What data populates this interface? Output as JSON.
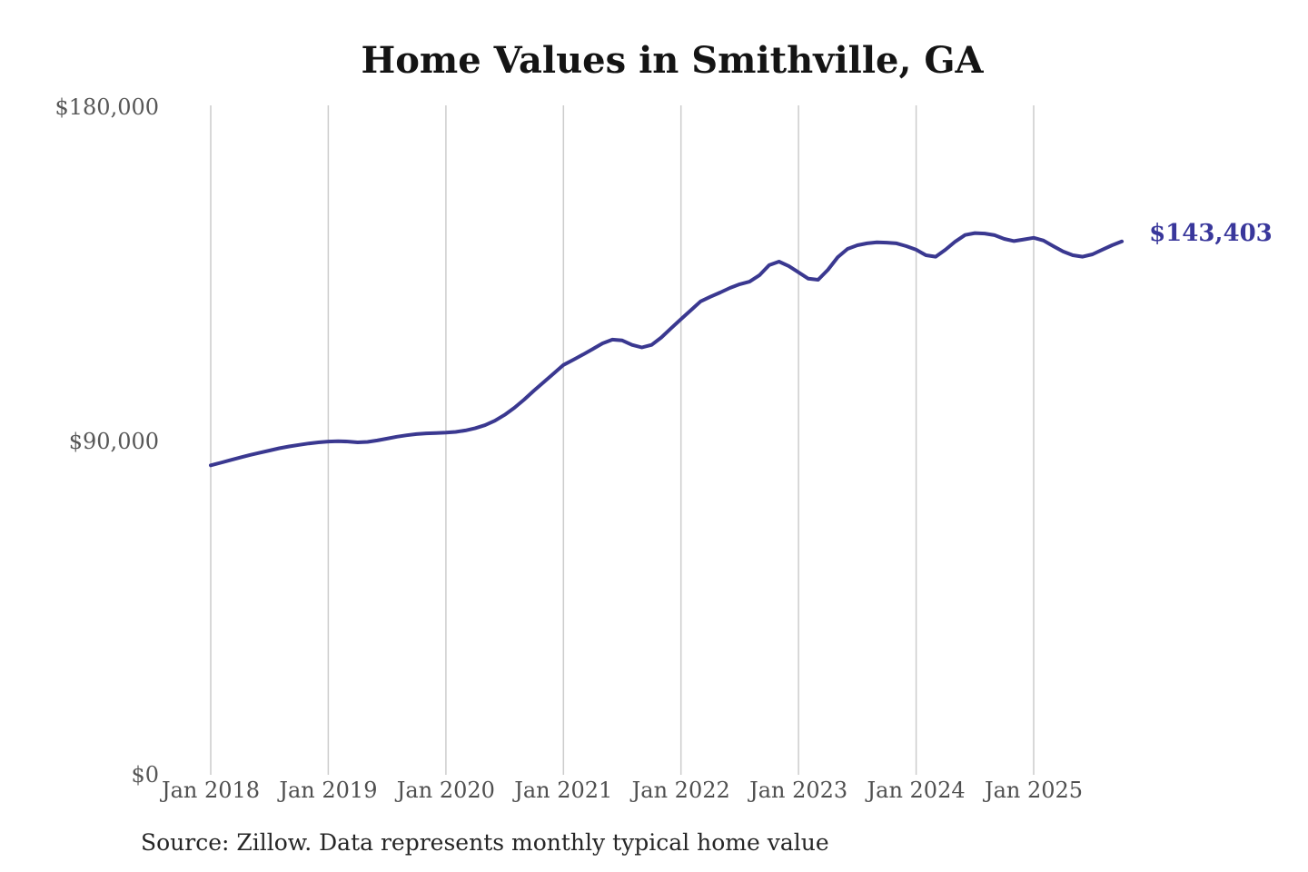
{
  "title": "Home Values in Smithville, GA",
  "axes": {
    "y_ticks": [
      "$180,000",
      "$90,000",
      "$0"
    ],
    "x_ticks": [
      "Jan 2018",
      "Jan 2019",
      "Jan 2020",
      "Jan 2021",
      "Jan 2022",
      "Jan 2023",
      "Jan 2024",
      "Jan 2025"
    ]
  },
  "annotation": {
    "latest_value_label": "$143,403"
  },
  "footer": {
    "source_note": "Source: Zillow. Data represents monthly typical home value"
  },
  "colors": {
    "line": "#3a3890",
    "latest_label": "#39379b",
    "gridline": "#cccccc",
    "axis_text": "#555555",
    "title_text": "#141414",
    "source_text": "#262626",
    "background": "#ffffff"
  },
  "chart_data": {
    "type": "line",
    "title": "Home Values in Smithville, GA",
    "xlabel": "",
    "ylabel": "",
    "unit": "USD",
    "ylim": [
      0,
      180000
    ],
    "y_tick_values": [
      0,
      90000,
      180000
    ],
    "x_tick_labels": [
      "Jan 2018",
      "Jan 2019",
      "Jan 2020",
      "Jan 2021",
      "Jan 2022",
      "Jan 2023",
      "Jan 2024",
      "Jan 2025"
    ],
    "grid": "vertical-only",
    "legend": "none",
    "latest_value": 143403,
    "series": [
      {
        "name": "Monthly typical home value",
        "start_month": "2018-01",
        "frequency": "monthly",
        "values": [
          83200,
          83900,
          84600,
          85300,
          86000,
          86600,
          87200,
          87800,
          88300,
          88700,
          89100,
          89400,
          89600,
          89700,
          89600,
          89400,
          89500,
          89900,
          90400,
          90900,
          91300,
          91600,
          91800,
          91900,
          92000,
          92200,
          92600,
          93200,
          94000,
          95200,
          96800,
          98700,
          100900,
          103300,
          105600,
          107900,
          110200,
          111600,
          113000,
          114500,
          116000,
          117000,
          116800,
          115600,
          114900,
          115600,
          117600,
          120100,
          122500,
          124900,
          127300,
          128550,
          129700,
          130900,
          131900,
          132600,
          134300,
          137050,
          138000,
          136800,
          135100,
          133400,
          133100,
          135800,
          139200,
          141400,
          142400,
          142900,
          143200,
          143100,
          142900,
          142150,
          141200,
          139700,
          139300,
          141200,
          143400,
          145150,
          145650,
          145550,
          145100,
          144100,
          143500,
          143950,
          144400,
          143650,
          142150,
          140700,
          139700,
          139300,
          139950,
          141200,
          142400,
          143403
        ]
      }
    ]
  }
}
